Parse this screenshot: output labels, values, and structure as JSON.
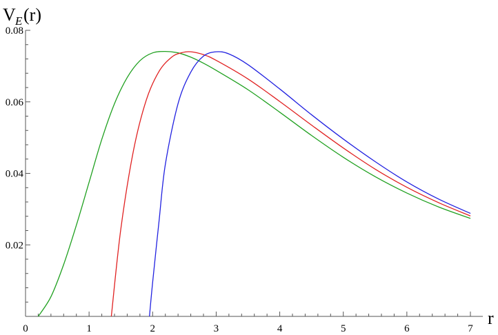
{
  "chart_data": {
    "type": "line",
    "title": "",
    "xlabel": "r",
    "ylabel": {
      "main": "V",
      "sub": "E",
      "arg": "(r)"
    },
    "xlim": [
      0,
      7
    ],
    "ylim": [
      0,
      0.08
    ],
    "x_ticks": [
      "0",
      "1",
      "2",
      "3",
      "4",
      "5",
      "6",
      "7"
    ],
    "y_ticks": [
      "0.02",
      "0.04",
      "0.06",
      "0.08"
    ],
    "grid": false,
    "legend": "none",
    "series": [
      {
        "color": "#1fa01f",
        "x": [
          0.2,
          0.4,
          0.6,
          0.8,
          1.0,
          1.2,
          1.4,
          1.6,
          1.8,
          2.0,
          2.2,
          2.4,
          2.6,
          2.8,
          3.0,
          3.5,
          4.0,
          4.5,
          5.0,
          5.5,
          6.0,
          6.5,
          7.0
        ],
        "y": [
          0.0,
          0.0055,
          0.0145,
          0.0255,
          0.0375,
          0.0495,
          0.0595,
          0.0668,
          0.0715,
          0.0737,
          0.0741,
          0.0737,
          0.0725,
          0.0708,
          0.0688,
          0.0634,
          0.0571,
          0.0506,
          0.0445,
          0.0391,
          0.0345,
          0.0306,
          0.0274
        ]
      },
      {
        "color": "#e02020",
        "x": [
          1.35,
          1.5,
          1.7,
          1.9,
          2.1,
          2.3,
          2.45,
          2.6,
          2.8,
          3.0,
          3.5,
          4.0,
          4.5,
          5.0,
          5.5,
          6.0,
          6.5,
          7.0
        ],
        "y": [
          0.0,
          0.0245,
          0.0465,
          0.0605,
          0.0685,
          0.0725,
          0.0737,
          0.074,
          0.0732,
          0.0716,
          0.0664,
          0.0601,
          0.0535,
          0.0471,
          0.0412,
          0.0361,
          0.0318,
          0.0281
        ]
      },
      {
        "color": "#2020e0",
        "x": [
          1.95,
          2.0,
          2.1,
          2.2,
          2.4,
          2.6,
          2.8,
          3.0,
          3.2,
          3.5,
          4.0,
          4.5,
          5.0,
          5.5,
          6.0,
          6.5,
          7.0
        ],
        "y": [
          0.0,
          0.0095,
          0.0265,
          0.0425,
          0.0595,
          0.0683,
          0.0728,
          0.074,
          0.0734,
          0.0704,
          0.0636,
          0.0564,
          0.0496,
          0.0433,
          0.0376,
          0.0328,
          0.0288
        ]
      }
    ]
  }
}
